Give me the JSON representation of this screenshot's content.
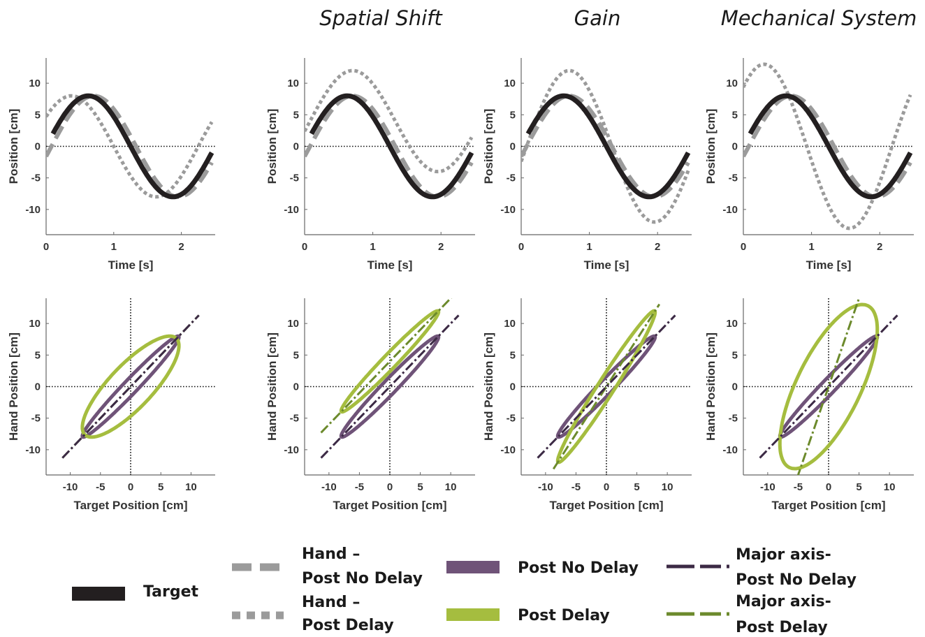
{
  "column_titles": [
    "Spatial Shift",
    "Gain",
    "Mechanical System"
  ],
  "colors": {
    "target": "#231f20",
    "hand": "#9b9b9b",
    "post_no_delay": "#6f5378",
    "post_delay": "#a5bd3f",
    "major_no_delay": "#3c2a45",
    "major_delay": "#6c8a2c"
  },
  "legend": {
    "target": "Target",
    "hand_no_delay": [
      "Hand –",
      "Post No Delay"
    ],
    "hand_delay": [
      "Hand –",
      "Post Delay"
    ],
    "post_no_delay": "Post No Delay",
    "post_delay": "Post Delay",
    "major_no_delay": [
      "Major axis-",
      "Post No Delay"
    ],
    "major_delay": [
      "Major axis-",
      "Post Delay"
    ]
  },
  "chart_data": [
    {
      "type": "line",
      "panel": "time-1",
      "xlabel": "Time [s]",
      "ylabel": "Position [cm]",
      "xlim": [
        0,
        2.5
      ],
      "ylim": [
        -14,
        14
      ],
      "xticks": [
        0,
        1,
        2
      ],
      "yticks": [
        -10,
        -5,
        0,
        5,
        10
      ],
      "x_range": [
        0.1,
        2.45
      ],
      "frequency_hz": 0.4,
      "target_amplitude": 8,
      "series": [
        {
          "name": "Target",
          "amplitude": 8,
          "phase_delay_s": 0.0
        },
        {
          "name": "Hand – Post No Delay",
          "amplitude": 8,
          "phase_delay_s": 0.08
        },
        {
          "name": "Hand – Post Delay",
          "amplitude": 8,
          "phase_delay_s": -0.25
        }
      ]
    },
    {
      "type": "line",
      "panel": "time-2",
      "xlabel": "Time [s]",
      "ylabel": "Position [cm]",
      "xlim": [
        0,
        2.5
      ],
      "ylim": [
        -14,
        14
      ],
      "xticks": [
        0,
        1,
        2
      ],
      "yticks": [
        -10,
        -5,
        0,
        5,
        10
      ],
      "x_range": [
        0.1,
        2.45
      ],
      "frequency_hz": 0.4,
      "target_amplitude": 8,
      "series": [
        {
          "name": "Target",
          "amplitude": 8,
          "phase_delay_s": 0.0
        },
        {
          "name": "Hand – Post No Delay",
          "amplitude": 8,
          "phase_delay_s": 0.08
        },
        {
          "name": "Hand – Post Delay",
          "amplitude": 8,
          "phase_delay_s": 0.08,
          "offset": 4
        }
      ]
    },
    {
      "type": "line",
      "panel": "time-3",
      "xlabel": "Time [s]",
      "ylabel": "Position [cm]",
      "xlim": [
        0,
        2.5
      ],
      "ylim": [
        -14,
        14
      ],
      "xticks": [
        0,
        1,
        2
      ],
      "yticks": [
        -10,
        -5,
        0,
        5,
        10
      ],
      "x_range": [
        0.1,
        2.45
      ],
      "frequency_hz": 0.4,
      "target_amplitude": 8,
      "series": [
        {
          "name": "Target",
          "amplitude": 8,
          "phase_delay_s": 0.0
        },
        {
          "name": "Hand – Post No Delay",
          "amplitude": 8,
          "phase_delay_s": 0.08
        },
        {
          "name": "Hand – Post Delay",
          "amplitude": 12,
          "phase_delay_s": 0.08
        }
      ]
    },
    {
      "type": "line",
      "panel": "time-4",
      "xlabel": "Time [s]",
      "ylabel": "Position [cm]",
      "xlim": [
        0,
        2.5
      ],
      "ylim": [
        -14,
        14
      ],
      "xticks": [
        0,
        1,
        2
      ],
      "yticks": [
        -10,
        -5,
        0,
        5,
        10
      ],
      "x_range": [
        0.1,
        2.45
      ],
      "frequency_hz": 0.4,
      "target_amplitude": 8,
      "series": [
        {
          "name": "Target",
          "amplitude": 8,
          "phase_delay_s": 0.0
        },
        {
          "name": "Hand – Post No Delay",
          "amplitude": 8,
          "phase_delay_s": 0.08
        },
        {
          "name": "Hand – Post Delay",
          "amplitude": 13,
          "phase_delay_s": -0.32
        }
      ]
    },
    {
      "type": "scatter",
      "panel": "phase-1",
      "xlabel": "Target Position [cm]",
      "ylabel": "Hand Position [cm]",
      "xlim": [
        -14,
        14
      ],
      "ylim": [
        -14,
        14
      ],
      "xticks": [
        -10,
        -5,
        0,
        5,
        10
      ],
      "yticks": [
        -10,
        -5,
        0,
        5,
        10
      ],
      "ellipses": [
        {
          "name": "Post No Delay",
          "amplitude": 8,
          "phase_delay_s": 0.08,
          "offset": 0
        },
        {
          "name": "Post Delay",
          "amplitude": 8,
          "phase_delay_s": -0.25,
          "offset": 0
        }
      ],
      "major_axes": [
        {
          "name": "Major axis-Post No Delay",
          "slope": 1.0,
          "intercept": 0,
          "x_from": -11.3,
          "x_to": 11.3
        },
        {
          "name": "Major axis-Post Delay",
          "slope": 1.0,
          "intercept": 0,
          "x_from": -11.3,
          "x_to": 11.3
        }
      ]
    },
    {
      "type": "scatter",
      "panel": "phase-2",
      "xlabel": "Target Position [cm]",
      "ylabel": "Hand Position [cm]",
      "xlim": [
        -14,
        14
      ],
      "ylim": [
        -14,
        14
      ],
      "xticks": [
        -10,
        -5,
        0,
        5,
        10
      ],
      "yticks": [
        -10,
        -5,
        0,
        5,
        10
      ],
      "ellipses": [
        {
          "name": "Post No Delay",
          "amplitude": 8,
          "phase_delay_s": 0.08,
          "offset": 0
        },
        {
          "name": "Post Delay",
          "amplitude": 8,
          "phase_delay_s": 0.08,
          "offset": 4
        }
      ],
      "major_axes": [
        {
          "name": "Major axis-Post No Delay",
          "slope": 1.0,
          "intercept": 0,
          "x_from": -11.3,
          "x_to": 11.3
        },
        {
          "name": "Major axis-Post Delay",
          "slope": 1.0,
          "intercept": 4,
          "x_from": -11.3,
          "x_to": 10.3
        }
      ]
    },
    {
      "type": "scatter",
      "panel": "phase-3",
      "xlabel": "Target Position [cm]",
      "ylabel": "Hand Position [cm]",
      "xlim": [
        -14,
        14
      ],
      "ylim": [
        -14,
        14
      ],
      "xticks": [
        -10,
        -5,
        0,
        5,
        10
      ],
      "yticks": [
        -10,
        -5,
        0,
        5,
        10
      ],
      "ellipses": [
        {
          "name": "Post No Delay",
          "amplitude": 8,
          "phase_delay_s": 0.08,
          "offset": 0
        },
        {
          "name": "Post Delay",
          "amplitude": 12,
          "phase_delay_s": 0.08,
          "offset": 0
        }
      ],
      "major_axes": [
        {
          "name": "Major axis-Post No Delay",
          "slope": 1.0,
          "intercept": 0,
          "x_from": -11.3,
          "x_to": 11.3
        },
        {
          "name": "Major axis-Post Delay",
          "slope": 1.5,
          "intercept": 0,
          "x_from": -8.7,
          "x_to": 8.7
        }
      ]
    },
    {
      "type": "scatter",
      "panel": "phase-4",
      "xlabel": "Target Position [cm]",
      "ylabel": "Hand Position [cm]",
      "xlim": [
        -14,
        14
      ],
      "ylim": [
        -14,
        14
      ],
      "xticks": [
        -10,
        -5,
        0,
        5,
        10
      ],
      "yticks": [
        -10,
        -5,
        0,
        5,
        10
      ],
      "ellipses": [
        {
          "name": "Post No Delay",
          "amplitude": 8,
          "phase_delay_s": 0.08,
          "offset": 0
        },
        {
          "name": "Post Delay",
          "amplitude": 13,
          "phase_delay_s": -0.32,
          "offset": 0
        }
      ],
      "major_axes": [
        {
          "name": "Major axis-Post No Delay",
          "slope": 1.0,
          "intercept": 0,
          "x_from": -11.3,
          "x_to": 11.3
        },
        {
          "name": "Major axis-Post Delay",
          "slope": 2.8,
          "intercept": 0,
          "x_from": -5.2,
          "x_to": 5.2
        }
      ]
    }
  ]
}
